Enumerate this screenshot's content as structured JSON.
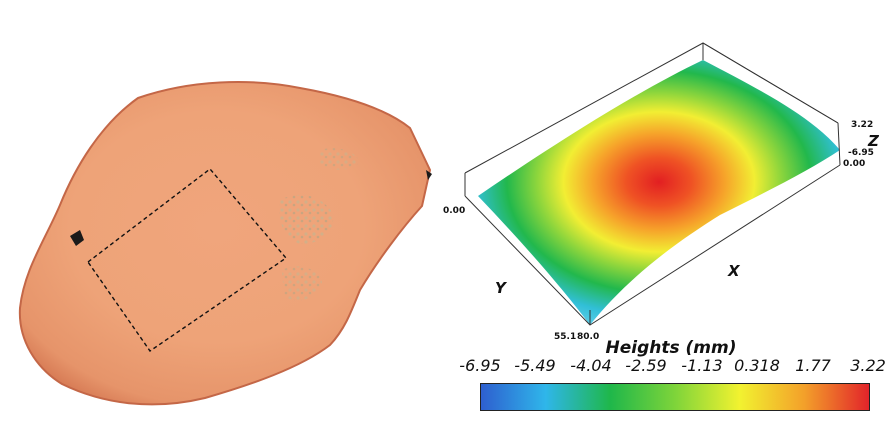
{
  "photo": {
    "description_icon": "rock-fragment-photo"
  },
  "surface_plot": {
    "axis_labels": {
      "x": "X",
      "y": "Y",
      "z": "Z"
    },
    "corner_labels": {
      "left_origin": "0.00",
      "y_max": "55.1",
      "x_max": "80.0",
      "right_origin": "0.00",
      "z_max": "3.22",
      "z_min": "-6.95"
    }
  },
  "colorbar": {
    "title": "Heights (mm)",
    "ticks": [
      "-6.95",
      "-5.49",
      "-4.04",
      "-2.59",
      "-1.13",
      "0.318",
      "1.77",
      "3.22"
    ],
    "range": [
      -6.95,
      3.22
    ],
    "colors": [
      "#2e5fcf",
      "#2fb6ea",
      "#1fb74a",
      "#7ed43a",
      "#f2f230",
      "#f3a02a",
      "#e2242a"
    ]
  }
}
